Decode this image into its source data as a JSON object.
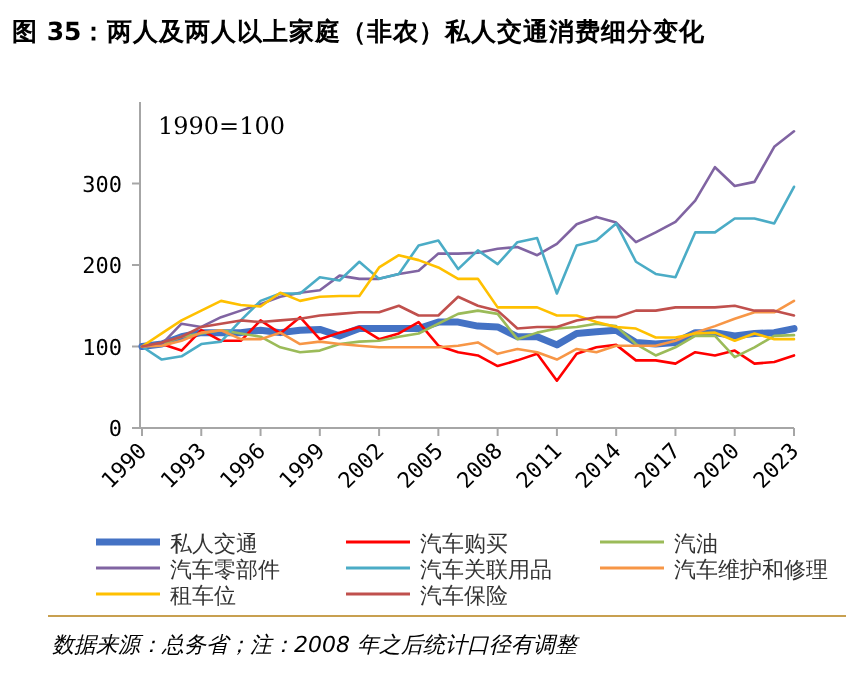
{
  "chart_data": {
    "type": "line",
    "title": "图 35：两人及两人以上家庭（非农）私人交通消费细分变化",
    "annotations": [
      "1990=100",
      "数据来源：总务省；注：2008 年之后统计口径有调整"
    ],
    "x": [
      1990,
      1991,
      1992,
      1993,
      1994,
      1995,
      1996,
      1997,
      1998,
      1999,
      2000,
      2001,
      2002,
      2003,
      2004,
      2005,
      2006,
      2007,
      2008,
      2009,
      2010,
      2011,
      2012,
      2013,
      2014,
      2015,
      2016,
      2017,
      2018,
      2019,
      2020,
      2021,
      2022,
      2023
    ],
    "xlim": [
      1990,
      2023
    ],
    "xticks": [
      1990,
      1993,
      1996,
      1999,
      2002,
      2005,
      2008,
      2011,
      2014,
      2017,
      2020,
      2023
    ],
    "ylim": [
      0,
      400
    ],
    "yticks": [
      0,
      100,
      200,
      300
    ],
    "legend": "bottom",
    "marker": "none",
    "line_style": "solid",
    "series": [
      {
        "name": "私人交通",
        "color": "#4472c4",
        "values": [
          100,
          103,
          112,
          117,
          117,
          117,
          120,
          117,
          120,
          121,
          113,
          122,
          122,
          122,
          122,
          130,
          130,
          125,
          124,
          112,
          112,
          102,
          116,
          118,
          120,
          105,
          103,
          105,
          117,
          117,
          113,
          116,
          117,
          122
        ]
      },
      {
        "name": "汽车购买",
        "color": "#ff0000",
        "values": [
          100,
          103,
          95,
          120,
          107,
          107,
          132,
          116,
          136,
          109,
          117,
          124,
          109,
          116,
          130,
          101,
          93,
          89,
          76,
          83,
          91,
          58,
          91,
          99,
          102,
          83,
          83,
          79,
          93,
          89,
          95,
          79,
          81,
          89
        ]
      },
      {
        "name": "汽油",
        "color": "#9bbb59",
        "values": [
          100,
          103,
          112,
          116,
          120,
          116,
          112,
          99,
          93,
          95,
          103,
          106,
          107,
          112,
          116,
          128,
          140,
          144,
          140,
          109,
          117,
          122,
          124,
          128,
          125,
          103,
          89,
          99,
          113,
          113,
          87,
          99,
          113,
          114
        ]
      },
      {
        "name": "汽车零部件",
        "color": "#8064a2",
        "values": [
          100,
          103,
          128,
          124,
          136,
          144,
          152,
          161,
          166,
          169,
          187,
          183,
          183,
          189,
          193,
          214,
          214,
          215,
          220,
          222,
          212,
          226,
          250,
          259,
          252,
          228,
          240,
          253,
          279,
          320,
          297,
          302,
          345,
          364
        ]
      },
      {
        "name": "汽车关联用品",
        "color": "#4bacc6",
        "values": [
          100,
          84,
          88,
          103,
          106,
          132,
          156,
          165,
          165,
          185,
          181,
          204,
          183,
          189,
          224,
          230,
          195,
          218,
          201,
          228,
          233,
          165,
          224,
          230,
          251,
          204,
          189,
          185,
          240,
          240,
          257,
          257,
          251,
          296
        ]
      },
      {
        "name": "汽车维护和修理",
        "color": "#f79646",
        "values": [
          100,
          101,
          107,
          117,
          120,
          109,
          109,
          117,
          103,
          106,
          103,
          101,
          99,
          99,
          99,
          99,
          101,
          105,
          91,
          97,
          93,
          84,
          97,
          93,
          101,
          101,
          101,
          107,
          117,
          125,
          134,
          142,
          142,
          156
        ]
      },
      {
        "name": "租车位",
        "color": "#ffc000",
        "values": [
          100,
          116,
          132,
          144,
          156,
          151,
          149,
          166,
          156,
          161,
          162,
          162,
          197,
          212,
          206,
          197,
          183,
          183,
          148,
          148,
          148,
          138,
          138,
          130,
          124,
          122,
          111,
          111,
          116,
          117,
          107,
          116,
          109,
          109
        ]
      },
      {
        "name": "汽车保险",
        "color": "#c0504d",
        "values": [
          100,
          105,
          112,
          124,
          128,
          132,
          130,
          132,
          134,
          138,
          140,
          142,
          142,
          150,
          138,
          138,
          161,
          150,
          144,
          122,
          124,
          124,
          132,
          136,
          136,
          144,
          144,
          148,
          148,
          148,
          150,
          144,
          144,
          138
        ]
      }
    ]
  }
}
